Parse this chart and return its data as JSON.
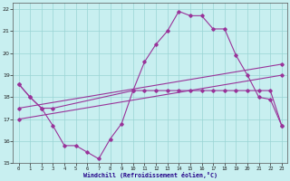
{
  "xlabel": "Windchill (Refroidissement éolien,°C)",
  "background_color": "#c8eff0",
  "grid_color": "#9ad4d4",
  "line_color": "#993399",
  "xlim": [
    -0.5,
    23.5
  ],
  "ylim": [
    15,
    22.3
  ],
  "yticks": [
    15,
    16,
    17,
    18,
    19,
    20,
    21,
    22
  ],
  "xticks": [
    0,
    1,
    2,
    3,
    4,
    5,
    6,
    7,
    8,
    9,
    10,
    11,
    12,
    13,
    14,
    15,
    16,
    17,
    18,
    19,
    20,
    21,
    22,
    23
  ],
  "line1_x": [
    0,
    1,
    2,
    3,
    4,
    5,
    6,
    7,
    8,
    9,
    10,
    11,
    12,
    13,
    14,
    15,
    16,
    17,
    18,
    19,
    20,
    21,
    22,
    23
  ],
  "line1_y": [
    18.6,
    18.0,
    17.5,
    16.7,
    15.8,
    15.8,
    15.5,
    15.2,
    16.1,
    16.8,
    18.3,
    18.3,
    18.3,
    18.3,
    18.3,
    18.3,
    18.3,
    18.3,
    18.3,
    18.3,
    18.3,
    18.3,
    18.3,
    16.7
  ],
  "line2_x": [
    0,
    1,
    2,
    3,
    10,
    11,
    12,
    13,
    14,
    15,
    16,
    17,
    18,
    19,
    20,
    21,
    22,
    23
  ],
  "line2_y": [
    18.6,
    18.0,
    17.5,
    17.5,
    18.3,
    19.6,
    20.4,
    21.0,
    21.9,
    21.7,
    21.7,
    21.1,
    21.1,
    19.9,
    19.0,
    18.0,
    17.9,
    16.7
  ],
  "line3_x": [
    0,
    23
  ],
  "line3_y": [
    17.5,
    19.5
  ],
  "line4_x": [
    0,
    23
  ],
  "line4_y": [
    17.0,
    19.0
  ]
}
